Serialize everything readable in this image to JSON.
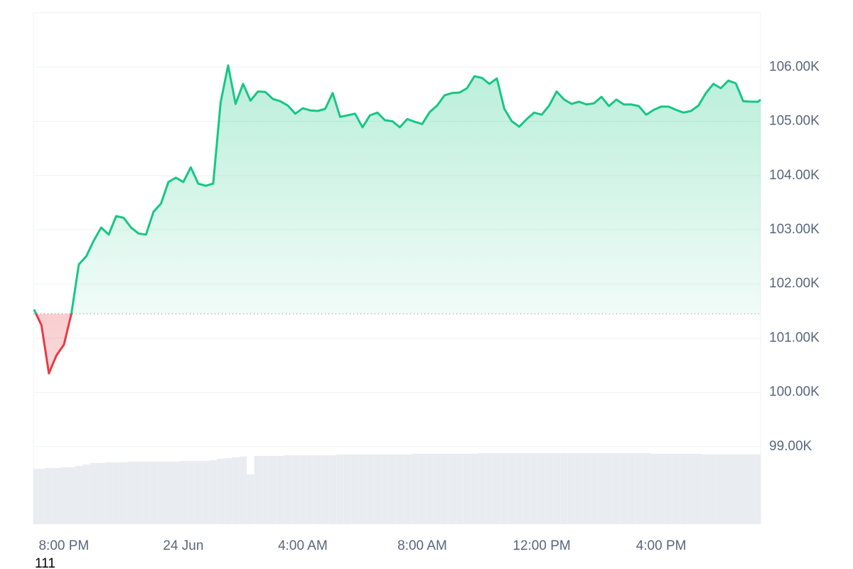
{
  "chart_data": {
    "type": "line",
    "footnote": "111",
    "x": [
      -1,
      -0.75,
      -0.5,
      -0.25,
      0,
      0.25,
      0.5,
      0.75,
      1,
      1.25,
      1.5,
      1.75,
      2,
      2.25,
      2.5,
      2.75,
      3,
      3.25,
      3.5,
      3.75,
      4,
      4.25,
      4.5,
      4.75,
      5,
      5.25,
      5.5,
      5.75,
      6,
      6.25,
      6.5,
      6.75,
      7,
      7.25,
      7.5,
      7.75,
      8,
      8.25,
      8.5,
      8.75,
      9,
      9.25,
      9.5,
      9.75,
      10,
      10.25,
      10.5,
      10.75,
      11,
      11.25,
      11.5,
      11.75,
      12,
      12.25,
      12.5,
      12.75,
      13,
      13.25,
      13.5,
      13.75,
      14,
      14.25,
      14.5,
      14.75,
      15,
      15.25,
      15.5,
      15.75,
      16,
      16.25,
      16.5,
      16.75,
      17,
      17.25,
      17.5,
      17.75,
      18,
      18.25,
      18.5,
      18.75,
      19,
      19.25,
      19.5,
      19.75,
      20,
      20.25,
      20.5,
      20.75,
      21,
      21.25,
      21.5,
      21.75,
      22,
      22.25,
      22.5,
      22.75,
      23,
      23.25,
      23.33
    ],
    "series": [
      {
        "color": "#16c784",
        "negative_color": "#ea3943",
        "values": [
          101.53,
          101.24,
          100.35,
          100.68,
          100.88,
          101.45,
          102.36,
          102.51,
          102.8,
          103.04,
          102.91,
          103.25,
          103.22,
          103.04,
          102.93,
          102.91,
          103.33,
          103.48,
          103.88,
          103.96,
          103.88,
          104.15,
          103.85,
          103.81,
          103.85,
          105.35,
          106.03,
          105.32,
          105.69,
          105.38,
          105.55,
          105.54,
          105.41,
          105.37,
          105.29,
          105.14,
          105.24,
          105.2,
          105.19,
          105.23,
          105.52,
          105.08,
          105.11,
          105.14,
          104.89,
          105.11,
          105.16,
          105.02,
          105.0,
          104.89,
          105.04,
          104.99,
          104.95,
          105.17,
          105.29,
          105.48,
          105.52,
          105.53,
          105.61,
          105.83,
          105.8,
          105.69,
          105.79,
          105.23,
          105.0,
          104.9,
          105.04,
          105.16,
          105.12,
          105.29,
          105.55,
          105.4,
          105.32,
          105.36,
          105.31,
          105.33,
          105.45,
          105.28,
          105.4,
          105.31,
          105.31,
          105.28,
          105.12,
          105.21,
          105.27,
          105.27,
          105.21,
          105.16,
          105.19,
          105.29,
          105.52,
          105.69,
          105.61,
          105.75,
          105.7,
          105.37,
          105.36,
          105.36,
          105.4
        ]
      }
    ],
    "baseline": 101.45,
    "volume": [
      78,
      78,
      79,
      79,
      80,
      80,
      82,
      84,
      86,
      86,
      87,
      87,
      87,
      88,
      88,
      88,
      88,
      88,
      88,
      88,
      89,
      89,
      89,
      89,
      90,
      92,
      93,
      94,
      95,
      70,
      96,
      96,
      96,
      96,
      97,
      97,
      97,
      97,
      97,
      97,
      97,
      98,
      98,
      98,
      98,
      98,
      98,
      98,
      98,
      98,
      98,
      99,
      99,
      99,
      99,
      99,
      99,
      99,
      99,
      99,
      100,
      100,
      100,
      100,
      100,
      100,
      100,
      100,
      100,
      100,
      100,
      100,
      100,
      100,
      100,
      100,
      100,
      100,
      100,
      100,
      100,
      100,
      100,
      99,
      99,
      99,
      99,
      99,
      99,
      99,
      98,
      98,
      98,
      98,
      98,
      98,
      98,
      98,
      98
    ],
    "volume_color": "#e9edf1",
    "xlim": [
      -1.02,
      23.33
    ],
    "xticks": [
      {
        "value": 0,
        "label": "8:00 PM"
      },
      {
        "value": 4,
        "label": "24 Jun"
      },
      {
        "value": 8,
        "label": "4:00 AM"
      },
      {
        "value": 12,
        "label": "8:00 AM"
      },
      {
        "value": 16,
        "label": "12:00 PM"
      },
      {
        "value": 20,
        "label": "4:00 PM"
      }
    ],
    "ylim": [
      97.57,
      107.0
    ],
    "yticks": [
      {
        "value": 99,
        "label": "99.00K"
      },
      {
        "value": 100,
        "label": "100.00K"
      },
      {
        "value": 101,
        "label": "101.00K"
      },
      {
        "value": 102,
        "label": "102.00K"
      },
      {
        "value": 103,
        "label": "103.00K"
      },
      {
        "value": 104,
        "label": "104.00K"
      },
      {
        "value": 105,
        "label": "105.00K"
      },
      {
        "value": 106,
        "label": "106.00K"
      }
    ],
    "grid": true
  }
}
